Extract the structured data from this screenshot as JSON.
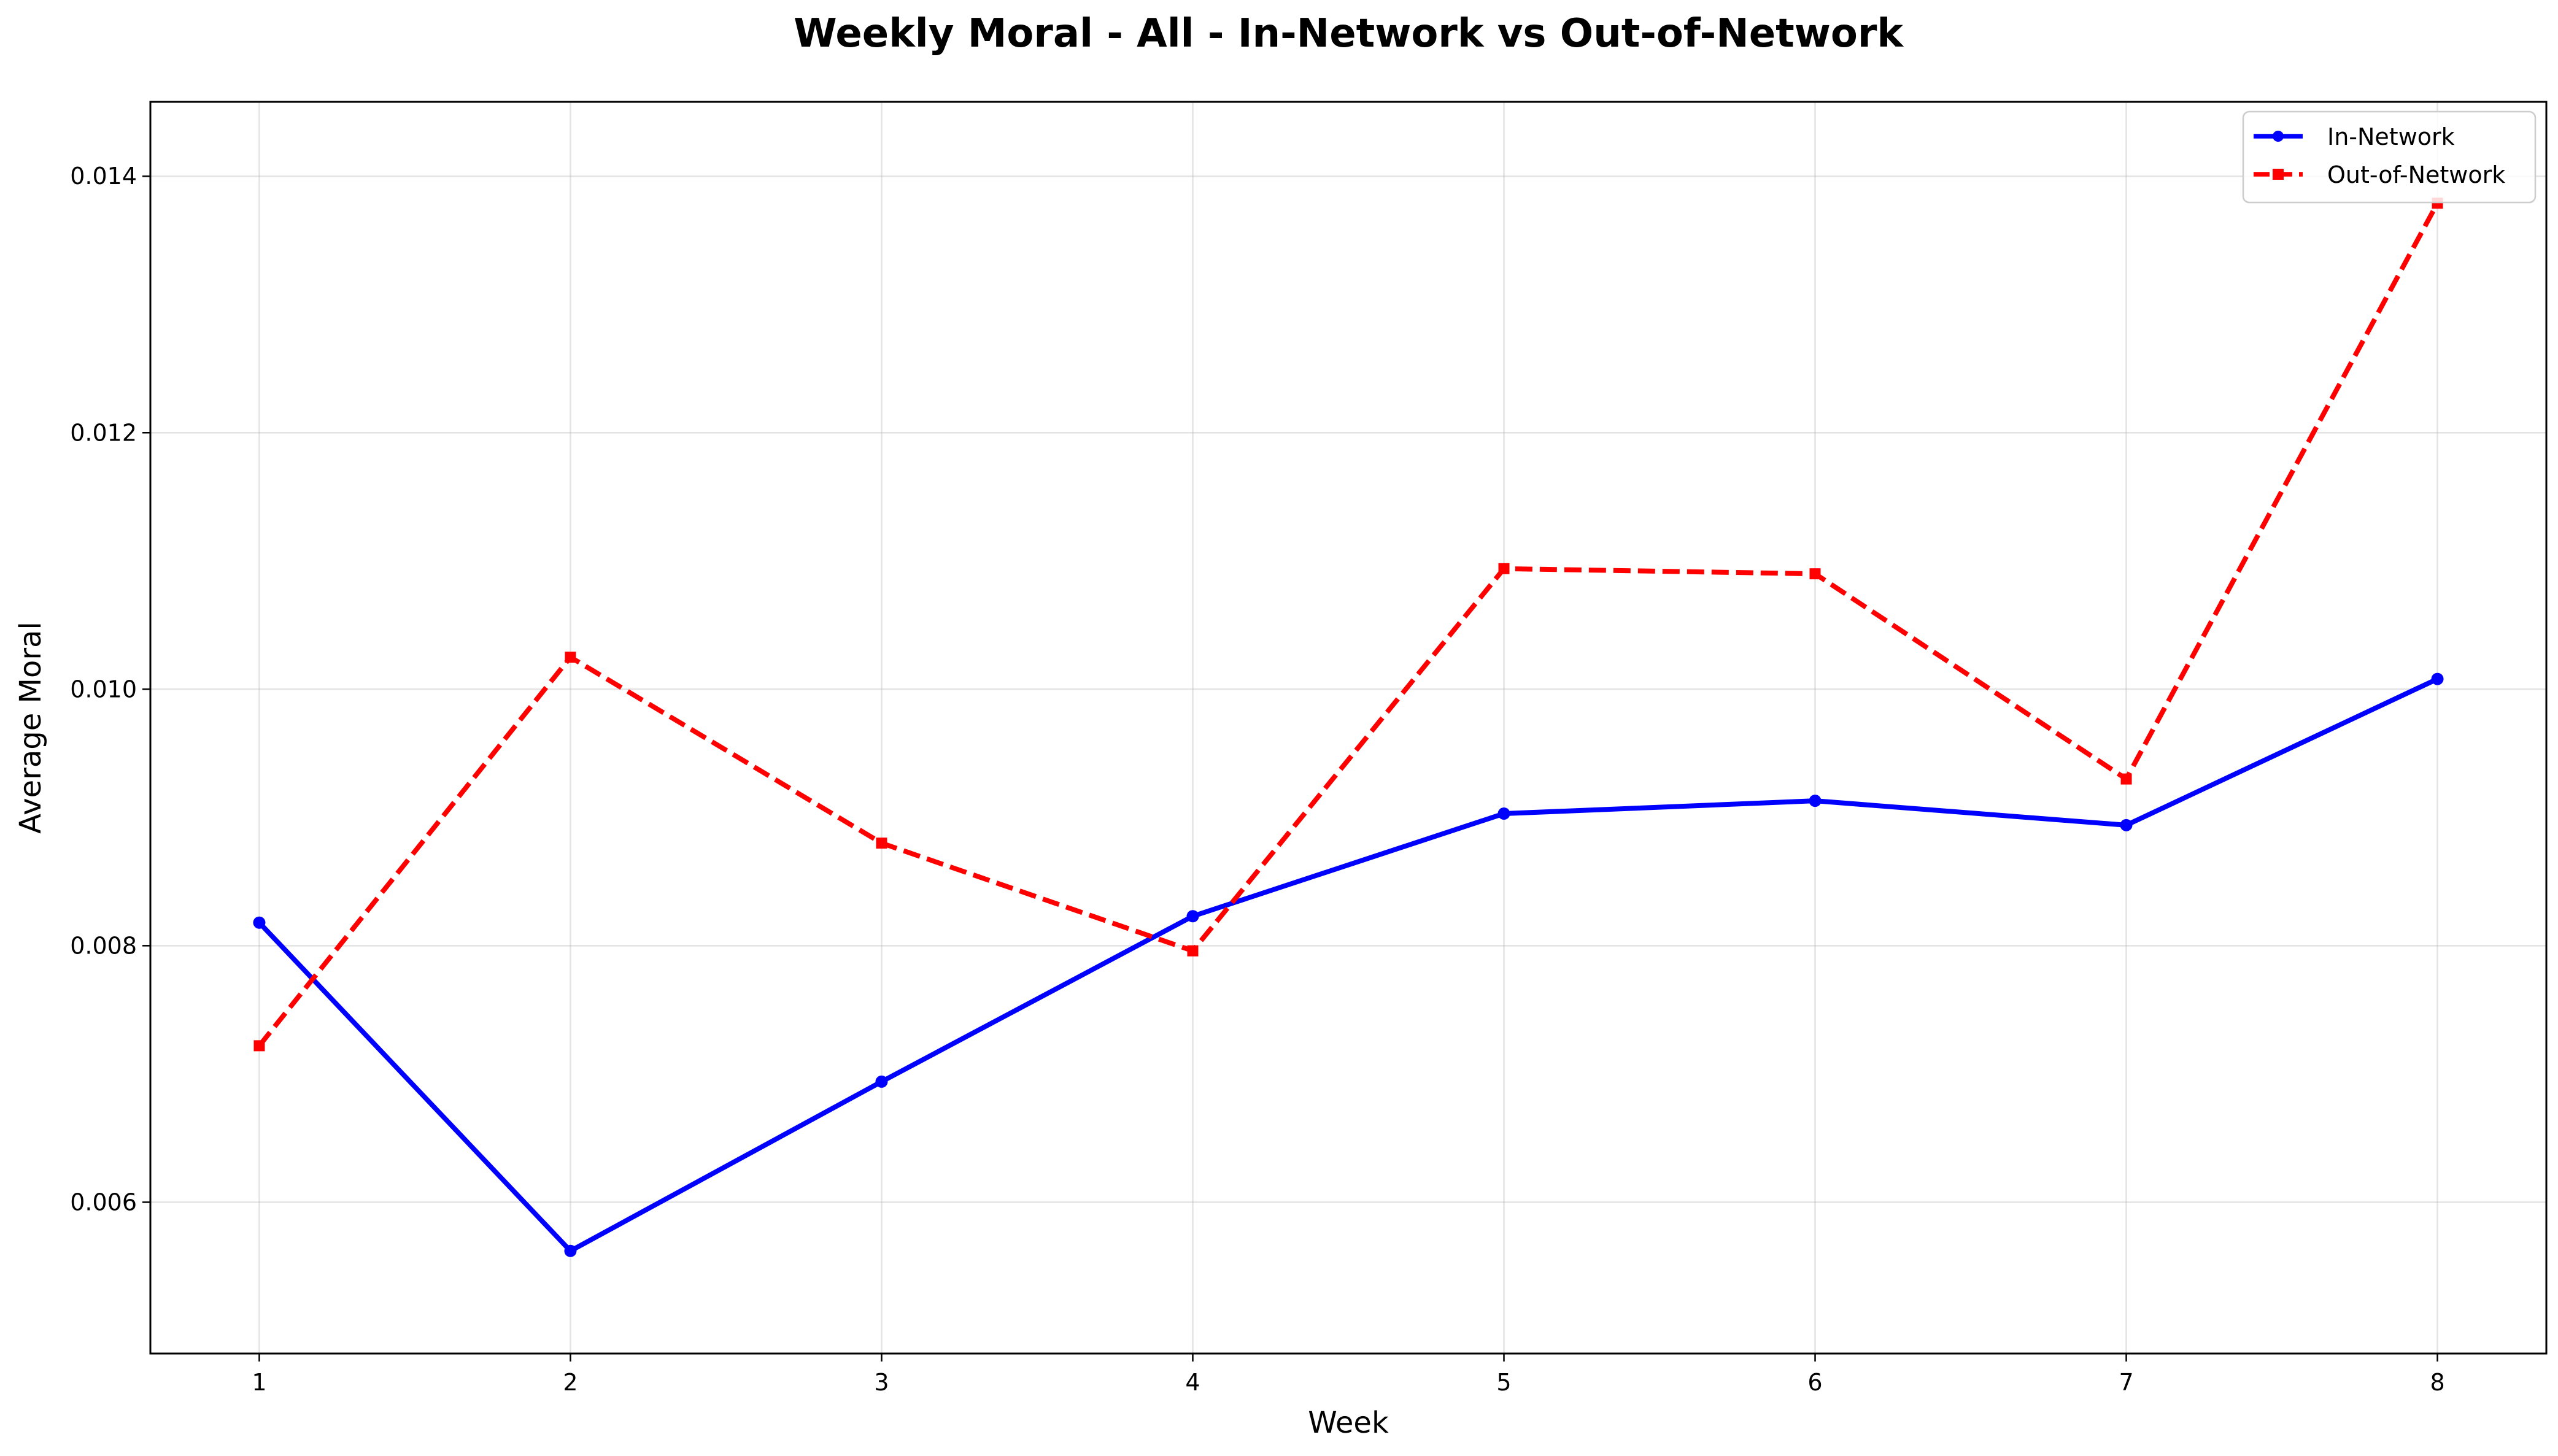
{
  "chart_data": {
    "type": "line",
    "title": "Weekly Moral - All - In-Network vs Out-of-Network",
    "xlabel": "Week",
    "ylabel": "Average Moral",
    "x": [
      1,
      2,
      3,
      4,
      5,
      6,
      7,
      8
    ],
    "x_ticks": [
      "1",
      "2",
      "3",
      "4",
      "5",
      "6",
      "7",
      "8"
    ],
    "xlim": [
      0.65,
      8.35
    ],
    "ylim": [
      0.00482,
      0.01458
    ],
    "y_ticks": [
      0.006,
      0.008,
      0.01,
      0.012,
      0.014
    ],
    "y_tick_labels": [
      "0.006",
      "0.008",
      "0.010",
      "0.012",
      "0.014"
    ],
    "grid": true,
    "legend_position": "top-right",
    "series": [
      {
        "name": "In-Network",
        "color": "#0000ff",
        "line_style": "solid",
        "marker": "circle",
        "values": [
          0.00818,
          0.00562,
          0.00694,
          0.00823,
          0.00903,
          0.00913,
          0.00894,
          0.01008
        ]
      },
      {
        "name": "Out-of-Network",
        "color": "#ff0000",
        "line_style": "dashed",
        "marker": "square",
        "values": [
          0.00722,
          0.01025,
          0.0088,
          0.00796,
          0.01094,
          0.0109,
          0.0093,
          0.01379
        ]
      }
    ]
  }
}
